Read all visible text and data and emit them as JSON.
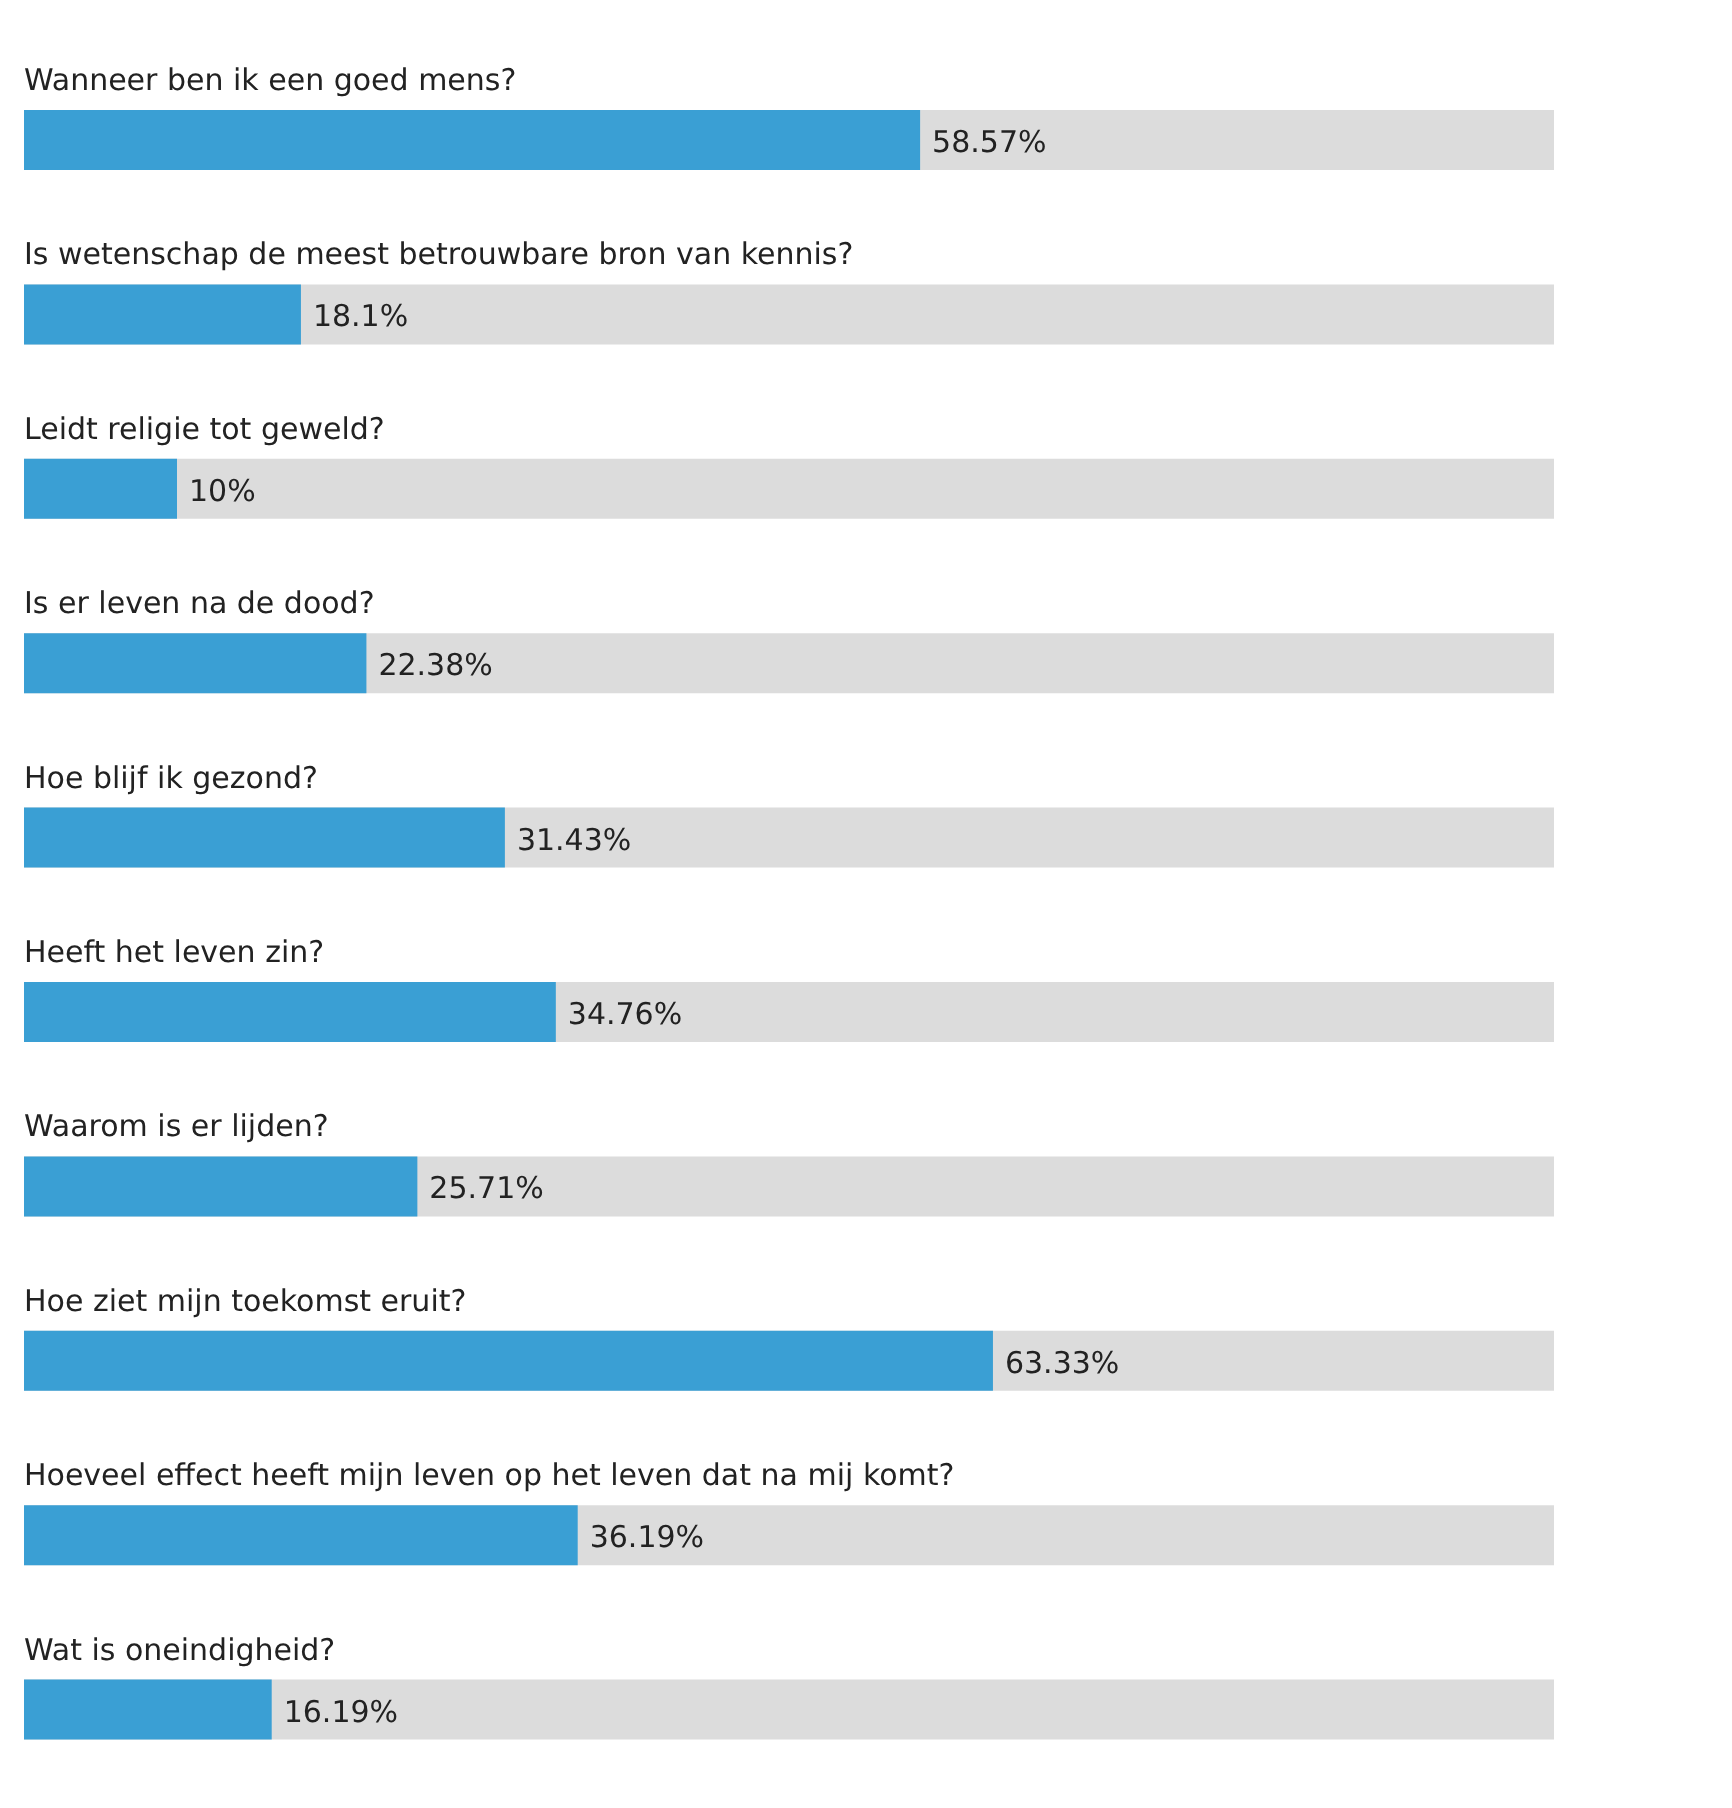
{
  "chart_data": {
    "type": "bar",
    "orientation": "horizontal",
    "categories": [
      "Wanneer ben ik een goed mens?",
      "Is wetenschap de meest betrouwbare bron van kennis?",
      "Leidt religie tot geweld?",
      "Is er leven na de dood?",
      "Hoe blijf ik gezond?",
      "Heeft het leven zin?",
      "Waarom is er lijden?",
      "Hoe ziet mijn toekomst eruit?",
      "Hoeveel effect heeft mijn leven op het leven dat na mij komt?",
      "Wat is oneindigheid?"
    ],
    "values": [
      58.57,
      18.1,
      10,
      22.38,
      31.43,
      34.76,
      25.71,
      63.33,
      36.19,
      16.19
    ],
    "value_labels": [
      "58.57%",
      "18.1%",
      "10%",
      "22.38%",
      "31.43%",
      "34.76%",
      "25.71%",
      "63.33%",
      "36.19%",
      "16.19%"
    ],
    "color": "#3a9fd4",
    "xlim": [
      0,
      100
    ],
    "tick_labels": false
  }
}
